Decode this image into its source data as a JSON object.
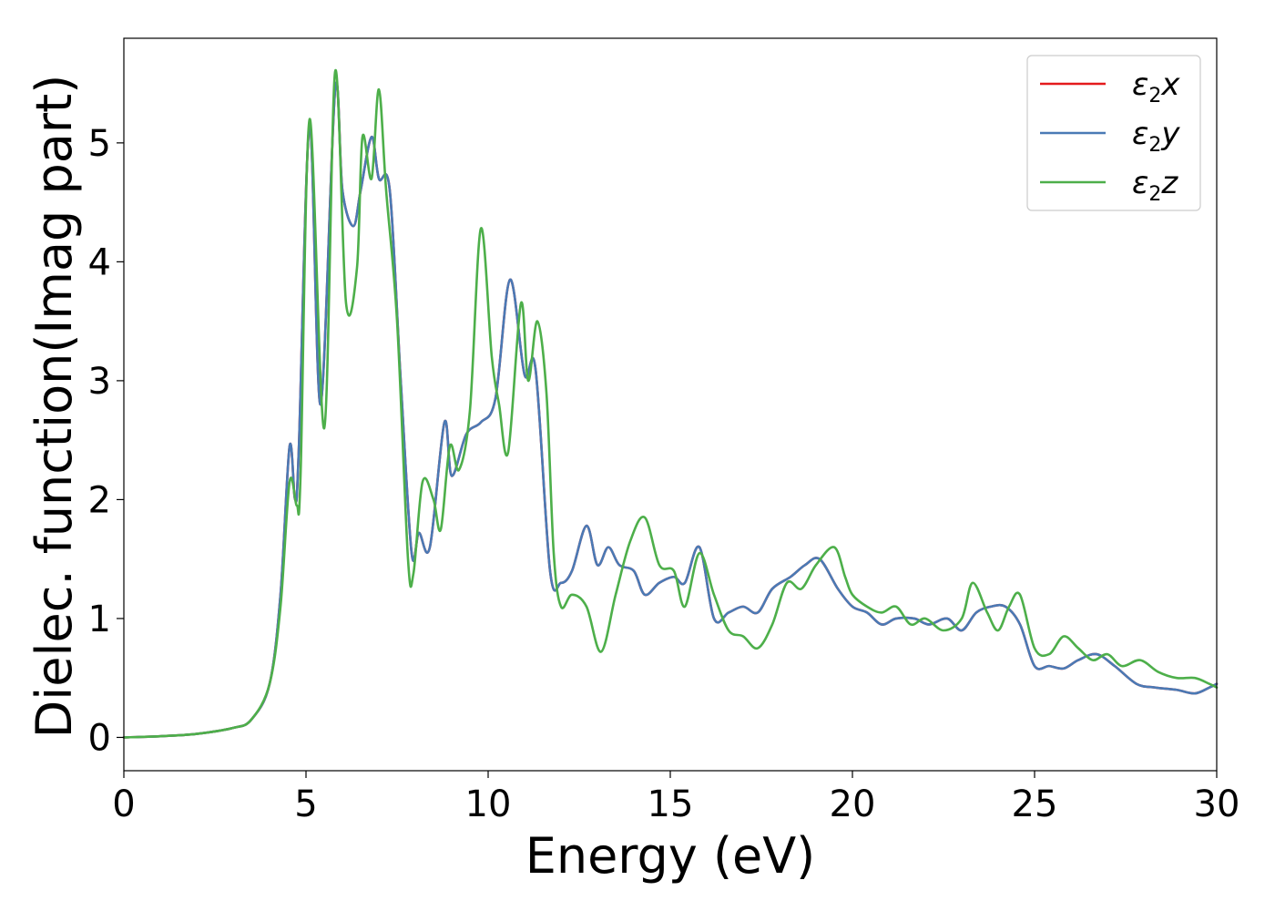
{
  "chart_data": {
    "type": "line",
    "xlabel": "Energy (eV)",
    "ylabel": "Dielec. function(Imag part)",
    "xlim": [
      0,
      30
    ],
    "ylim": [
      -0.28,
      5.88
    ],
    "xticks": [
      "0",
      "5",
      "10",
      "15",
      "20",
      "25",
      "30"
    ],
    "yticks": [
      "0",
      "1",
      "2",
      "3",
      "4",
      "5"
    ],
    "grid": false,
    "legend_position": "top-right",
    "series": [
      {
        "name": "ε2x",
        "color": "#e41a1c",
        "legend_base": "ε",
        "legend_sub": "2",
        "legend_tail": "x",
        "x": [
          0,
          1,
          2,
          3,
          3.5,
          4,
          4.3,
          4.55,
          4.7,
          4.8,
          5.1,
          5.4,
          5.8,
          6.0,
          6.3,
          6.5,
          6.8,
          7.0,
          7.3,
          7.6,
          7.9,
          8.1,
          8.4,
          8.8,
          9.0,
          9.4,
          9.8,
          10.2,
          10.6,
          11.0,
          11.3,
          11.7,
          12.0,
          12.3,
          12.7,
          13.0,
          13.3,
          13.6,
          14.0,
          14.3,
          14.7,
          15.1,
          15.4,
          15.8,
          16.2,
          16.6,
          17.0,
          17.4,
          17.8,
          18.3,
          18.7,
          19.1,
          19.6,
          20.0,
          20.4,
          20.8,
          21.2,
          21.7,
          22.1,
          22.6,
          23.0,
          23.4,
          23.8,
          24.2,
          24.6,
          25.0,
          25.4,
          25.8,
          26.2,
          26.7,
          27.2,
          27.8,
          28.3,
          28.9,
          29.4,
          29.8,
          30.0
        ],
        "y": [
          0,
          0.01,
          0.03,
          0.08,
          0.15,
          0.45,
          1.2,
          2.45,
          2.0,
          2.4,
          5.15,
          2.8,
          5.45,
          4.6,
          4.3,
          4.6,
          5.05,
          4.7,
          4.6,
          3.0,
          1.55,
          1.72,
          1.6,
          2.65,
          2.2,
          2.55,
          2.65,
          2.85,
          3.85,
          3.05,
          3.1,
          1.4,
          1.3,
          1.4,
          1.78,
          1.45,
          1.6,
          1.45,
          1.4,
          1.2,
          1.3,
          1.35,
          1.3,
          1.6,
          1.0,
          1.05,
          1.1,
          1.05,
          1.25,
          1.35,
          1.45,
          1.5,
          1.25,
          1.1,
          1.05,
          0.95,
          1.0,
          1.0,
          0.95,
          1.0,
          0.9,
          1.05,
          1.1,
          1.1,
          0.95,
          0.6,
          0.6,
          0.58,
          0.65,
          0.7,
          0.6,
          0.45,
          0.42,
          0.4,
          0.37,
          0.42,
          0.45
        ]
      },
      {
        "name": "ε2y",
        "color": "#4a7ab5",
        "legend_base": "ε",
        "legend_sub": "2",
        "legend_tail": "y",
        "x": [
          0,
          1,
          2,
          3,
          3.5,
          4,
          4.3,
          4.55,
          4.7,
          4.8,
          5.1,
          5.4,
          5.8,
          6.0,
          6.3,
          6.5,
          6.8,
          7.0,
          7.3,
          7.6,
          7.9,
          8.1,
          8.4,
          8.8,
          9.0,
          9.4,
          9.8,
          10.2,
          10.6,
          11.0,
          11.3,
          11.7,
          12.0,
          12.3,
          12.7,
          13.0,
          13.3,
          13.6,
          14.0,
          14.3,
          14.7,
          15.1,
          15.4,
          15.8,
          16.2,
          16.6,
          17.0,
          17.4,
          17.8,
          18.3,
          18.7,
          19.1,
          19.6,
          20.0,
          20.4,
          20.8,
          21.2,
          21.7,
          22.1,
          22.6,
          23.0,
          23.4,
          23.8,
          24.2,
          24.6,
          25.0,
          25.4,
          25.8,
          26.2,
          26.7,
          27.2,
          27.8,
          28.3,
          28.9,
          29.4,
          29.8,
          30.0
        ],
        "y": [
          0,
          0.01,
          0.03,
          0.08,
          0.15,
          0.45,
          1.2,
          2.45,
          2.0,
          2.4,
          5.15,
          2.8,
          5.45,
          4.6,
          4.3,
          4.6,
          5.05,
          4.7,
          4.6,
          3.0,
          1.55,
          1.72,
          1.6,
          2.65,
          2.2,
          2.55,
          2.65,
          2.85,
          3.85,
          3.05,
          3.1,
          1.4,
          1.3,
          1.4,
          1.78,
          1.45,
          1.6,
          1.45,
          1.4,
          1.2,
          1.3,
          1.35,
          1.3,
          1.6,
          1.0,
          1.05,
          1.1,
          1.05,
          1.25,
          1.35,
          1.45,
          1.5,
          1.25,
          1.1,
          1.05,
          0.95,
          1.0,
          1.0,
          0.95,
          1.0,
          0.9,
          1.05,
          1.1,
          1.1,
          0.95,
          0.6,
          0.6,
          0.58,
          0.65,
          0.7,
          0.6,
          0.45,
          0.42,
          0.4,
          0.37,
          0.42,
          0.45
        ]
      },
      {
        "name": "ε2z",
        "color": "#4daf4a",
        "legend_base": "ε",
        "legend_sub": "2",
        "legend_tail": "z",
        "x": [
          0,
          1,
          2,
          3,
          3.5,
          4,
          4.3,
          4.55,
          4.75,
          4.85,
          5.1,
          5.5,
          5.8,
          6.1,
          6.4,
          6.55,
          6.8,
          7.0,
          7.2,
          7.5,
          7.8,
          7.95,
          8.2,
          8.5,
          8.7,
          8.95,
          9.2,
          9.5,
          9.8,
          10.1,
          10.3,
          10.55,
          10.9,
          11.1,
          11.35,
          11.6,
          11.8,
          12.0,
          12.3,
          12.7,
          13.1,
          13.5,
          13.9,
          14.3,
          14.7,
          15.1,
          15.4,
          15.8,
          16.2,
          16.6,
          17.0,
          17.4,
          17.8,
          18.2,
          18.6,
          19.0,
          19.5,
          19.8,
          20.0,
          20.4,
          20.8,
          21.2,
          21.6,
          22.0,
          22.5,
          23.0,
          23.3,
          23.7,
          24.0,
          24.3,
          24.6,
          25.0,
          25.4,
          25.8,
          26.2,
          26.6,
          27.0,
          27.4,
          27.9,
          28.4,
          28.9,
          29.4,
          29.8,
          30.0
        ],
        "y": [
          0,
          0.01,
          0.03,
          0.08,
          0.15,
          0.45,
          1.1,
          2.15,
          1.95,
          2.2,
          5.2,
          2.6,
          5.6,
          3.65,
          3.95,
          5.05,
          4.7,
          5.45,
          4.6,
          3.5,
          1.5,
          1.38,
          2.15,
          2.0,
          1.75,
          2.45,
          2.25,
          2.75,
          4.28,
          3.2,
          2.8,
          2.4,
          3.65,
          3.0,
          3.5,
          2.9,
          1.55,
          1.1,
          1.2,
          1.1,
          0.72,
          1.2,
          1.65,
          1.85,
          1.45,
          1.4,
          1.1,
          1.55,
          1.2,
          0.9,
          0.85,
          0.75,
          0.95,
          1.3,
          1.25,
          1.45,
          1.6,
          1.35,
          1.2,
          1.1,
          1.05,
          1.1,
          0.95,
          1.0,
          0.9,
          1.0,
          1.3,
          1.05,
          0.9,
          1.1,
          1.2,
          0.75,
          0.7,
          0.85,
          0.75,
          0.65,
          0.7,
          0.6,
          0.65,
          0.55,
          0.5,
          0.5,
          0.45,
          0.42
        ]
      }
    ]
  }
}
